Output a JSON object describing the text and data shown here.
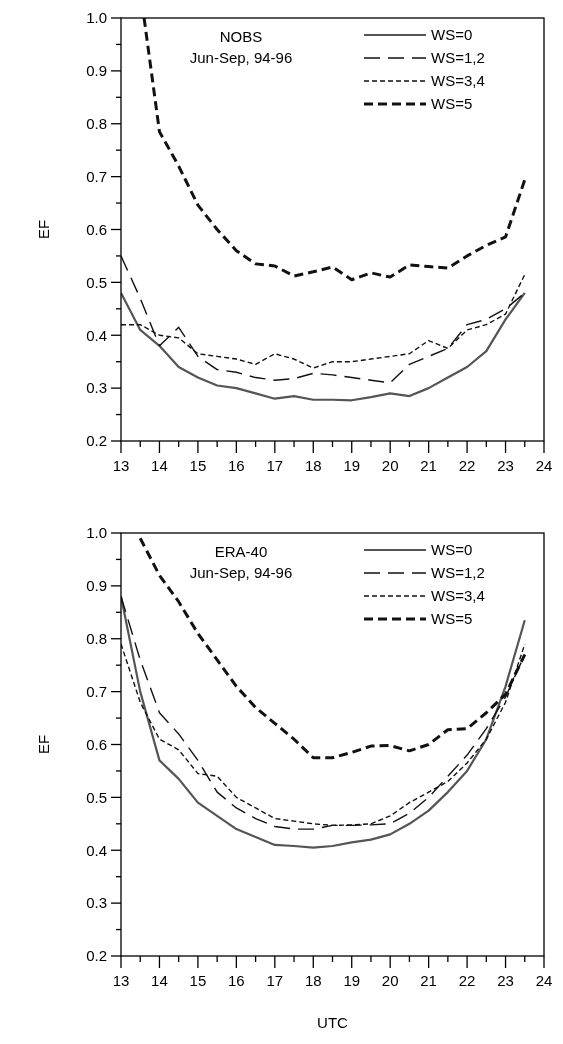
{
  "chart_data": [
    {
      "type": "line",
      "title": "NOBS\nJun-Sep, 94-96",
      "ylabel": "EF",
      "legend": "top right",
      "tick_labels": true,
      "xlim": [
        13,
        24
      ],
      "ylim": [
        0.2,
        1.0
      ],
      "xticks": [
        13,
        {
          "value": 13.5,
          "label": null
        },
        14,
        {
          "value": 14.5,
          "label": null
        },
        15,
        {
          "value": 15.5,
          "label": null
        },
        16,
        {
          "value": 16.5,
          "label": null
        },
        17,
        {
          "value": 17.5,
          "label": null
        },
        18,
        {
          "value": 18.5,
          "label": null
        },
        19,
        {
          "value": 19.5,
          "label": null
        },
        20,
        {
          "value": 20.5,
          "label": null
        },
        21,
        {
          "value": 21.5,
          "label": null
        },
        22,
        {
          "value": 22.5,
          "label": null
        },
        23,
        {
          "value": 23.5,
          "label": null
        },
        24
      ],
      "yticks": [
        0.2,
        {
          "value": 0.25,
          "label": null
        },
        0.3,
        {
          "value": 0.35,
          "label": null
        },
        0.4,
        {
          "value": 0.45,
          "label": null
        },
        0.5,
        {
          "value": 0.55,
          "label": null
        },
        0.6,
        {
          "value": 0.65,
          "label": null
        },
        0.7,
        {
          "value": 0.75,
          "label": null
        },
        0.8,
        {
          "value": 0.85,
          "label": null
        },
        0.9,
        {
          "value": 0.95,
          "label": null
        },
        {
          "value": 1.0,
          "label": "1.0"
        }
      ],
      "x": [
        13,
        13.5,
        14,
        14.5,
        15,
        15.5,
        16,
        16.5,
        17,
        17.5,
        18,
        18.5,
        19,
        19.5,
        20,
        20.5,
        21,
        21.5,
        22,
        22.5,
        23,
        23.5
      ],
      "series": [
        {
          "name": "WS=0",
          "color": "#555555",
          "line_style": "solid",
          "values": [
            0.48,
            0.41,
            0.38,
            0.34,
            0.32,
            0.305,
            0.3,
            0.29,
            0.28,
            0.285,
            0.278,
            0.278,
            0.277,
            0.283,
            0.29,
            0.285,
            0.3,
            0.32,
            0.34,
            0.37,
            0.43,
            0.48
          ]
        },
        {
          "name": "WS=1,2",
          "color": "#111111",
          "line_style": "dashed",
          "values": [
            0.55,
            0.47,
            0.38,
            0.415,
            0.36,
            0.335,
            0.33,
            0.32,
            0.315,
            0.318,
            0.328,
            0.325,
            0.32,
            0.315,
            0.31,
            0.345,
            0.36,
            0.375,
            0.42,
            0.43,
            0.45,
            0.48
          ]
        },
        {
          "name": "WS=3,4",
          "color": "#111111",
          "line_style": "dotted",
          "values": [
            0.42,
            0.42,
            0.4,
            0.395,
            0.365,
            0.36,
            0.355,
            0.345,
            0.365,
            0.355,
            0.338,
            0.35,
            0.35,
            0.355,
            0.36,
            0.365,
            0.39,
            0.375,
            0.41,
            0.42,
            0.44,
            0.515
          ]
        },
        {
          "name": "WS=5",
          "color": "#111111",
          "line_style": "dashed",
          "x": [
            13.6,
            14,
            14.5,
            15,
            15.5,
            16,
            16.5,
            17,
            17.5,
            18,
            18.5,
            19,
            19.5,
            20,
            20.5,
            21,
            21.5,
            22,
            22.5,
            23,
            23.5
          ],
          "values": [
            1.0,
            0.785,
            0.72,
            0.646,
            0.6,
            0.56,
            0.535,
            0.531,
            0.512,
            0.52,
            0.529,
            0.505,
            0.518,
            0.51,
            0.533,
            0.53,
            0.527,
            0.55,
            0.57,
            0.586,
            0.694
          ]
        }
      ]
    },
    {
      "type": "line",
      "title": "ERA-40\nJun-Sep, 94-96",
      "ylabel": "EF",
      "xlabel": "UTC",
      "legend": "top right",
      "tick_labels": true,
      "xlim": [
        13,
        24
      ],
      "ylim": [
        0.2,
        1.0
      ],
      "xticks": [
        13,
        {
          "value": 13.5,
          "label": null
        },
        14,
        {
          "value": 14.5,
          "label": null
        },
        15,
        {
          "value": 15.5,
          "label": null
        },
        16,
        {
          "value": 16.5,
          "label": null
        },
        17,
        {
          "value": 17.5,
          "label": null
        },
        18,
        {
          "value": 18.5,
          "label": null
        },
        19,
        {
          "value": 19.5,
          "label": null
        },
        20,
        {
          "value": 20.5,
          "label": null
        },
        21,
        {
          "value": 21.5,
          "label": null
        },
        22,
        {
          "value": 22.5,
          "label": null
        },
        23,
        {
          "value": 23.5,
          "label": null
        },
        24
      ],
      "yticks": [
        0.2,
        {
          "value": 0.25,
          "label": null
        },
        0.3,
        {
          "value": 0.35,
          "label": null
        },
        0.4,
        {
          "value": 0.45,
          "label": null
        },
        0.5,
        {
          "value": 0.55,
          "label": null
        },
        0.6,
        {
          "value": 0.65,
          "label": null
        },
        0.7,
        {
          "value": 0.75,
          "label": null
        },
        0.8,
        {
          "value": 0.85,
          "label": null
        },
        0.9,
        {
          "value": 0.95,
          "label": null
        },
        {
          "value": 1.0,
          "label": "1.0"
        }
      ],
      "x": [
        13,
        13.5,
        14,
        14.5,
        15,
        15.5,
        16,
        16.5,
        17,
        17.5,
        18,
        18.5,
        19,
        19.5,
        20,
        20.5,
        21,
        21.5,
        22,
        22.5,
        23,
        23.5
      ],
      "series": [
        {
          "name": "WS=0",
          "color": "#555555",
          "line_style": "solid",
          "values": [
            0.88,
            0.7,
            0.57,
            0.535,
            0.49,
            0.465,
            0.44,
            0.425,
            0.41,
            0.408,
            0.405,
            0.408,
            0.415,
            0.42,
            0.43,
            0.45,
            0.475,
            0.51,
            0.55,
            0.61,
            0.71,
            0.835
          ]
        },
        {
          "name": "WS=1,2",
          "color": "#111111",
          "line_style": "dashed",
          "values": [
            0.88,
            0.76,
            0.66,
            0.62,
            0.57,
            0.51,
            0.48,
            0.46,
            0.445,
            0.44,
            0.44,
            0.447,
            0.447,
            0.448,
            0.45,
            0.47,
            0.5,
            0.54,
            0.58,
            0.63,
            0.69,
            0.77
          ]
        },
        {
          "name": "WS=3,4",
          "color": "#111111",
          "line_style": "dotted",
          "values": [
            0.79,
            0.68,
            0.61,
            0.59,
            0.545,
            0.54,
            0.5,
            0.48,
            0.46,
            0.455,
            0.45,
            0.447,
            0.448,
            0.45,
            0.465,
            0.49,
            0.51,
            0.53,
            0.565,
            0.61,
            0.68,
            0.79
          ]
        },
        {
          "name": "WS=5",
          "color": "#111111",
          "line_style": "dashed",
          "values": [
            null,
            0.99,
            0.92,
            0.87,
            0.81,
            0.76,
            0.71,
            0.67,
            0.64,
            0.61,
            0.575,
            0.575,
            0.585,
            0.597,
            0.598,
            0.588,
            0.6,
            0.628,
            0.63,
            0.66,
            0.695,
            0.77
          ]
        }
      ]
    }
  ]
}
